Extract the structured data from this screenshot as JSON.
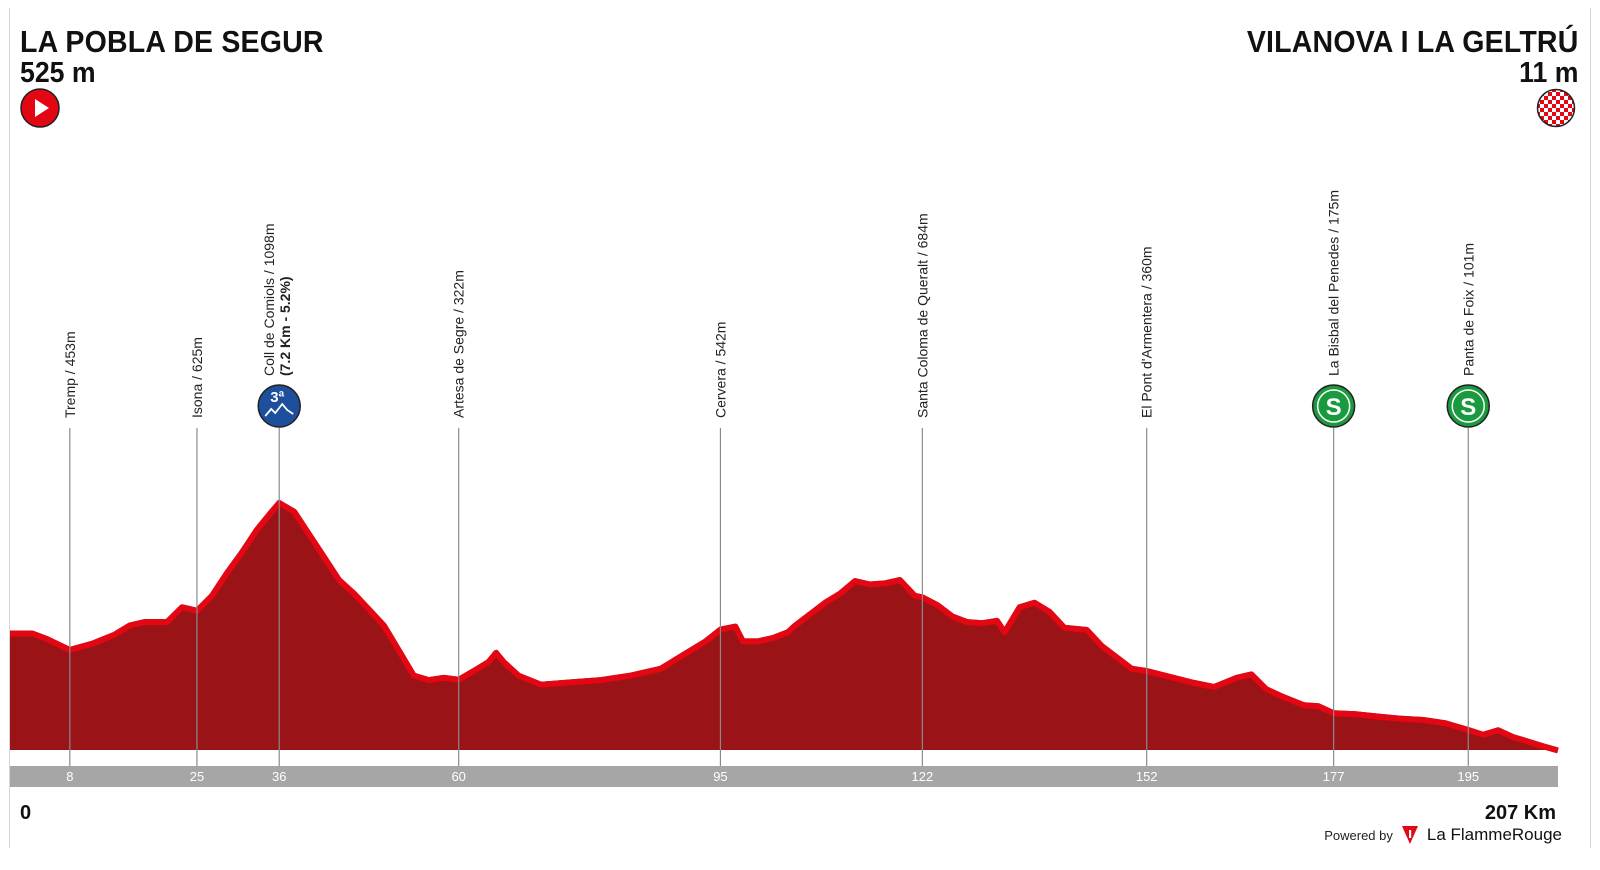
{
  "start": {
    "name": "LA POBLA DE SEGUR",
    "altitude": "525 m"
  },
  "finish": {
    "name": "VILANOVA I LA GELTRÚ",
    "altitude": "11 m"
  },
  "footer": {
    "km_start": "0",
    "km_end": "207 Km",
    "powered_by": "Powered by",
    "brand": "La FlammeRouge"
  },
  "colors": {
    "profile_fill": "#9a1316",
    "profile_edge": "#e30613",
    "axis_bar": "#a6a6a6",
    "start_icon": "#e30613",
    "kom_badge": "#1d4f9c",
    "sprint_badge": "#1a9a3e"
  },
  "icons": {
    "start": "play-icon",
    "finish": "checkered-flag-icon",
    "climb": "mountain-3rd-category-icon",
    "sprint": "sprint-s-icon"
  },
  "chart_data": {
    "type": "area",
    "title": "",
    "xlabel": "",
    "ylabel": "",
    "x_unit": "km",
    "y_unit": "m",
    "xlim": [
      0,
      207
    ],
    "ylim": [
      0,
      1098
    ],
    "elevation": [
      [
        0,
        525
      ],
      [
        3,
        525
      ],
      [
        5,
        500
      ],
      [
        8,
        453
      ],
      [
        11,
        480
      ],
      [
        14,
        520
      ],
      [
        16,
        560
      ],
      [
        18,
        575
      ],
      [
        21,
        575
      ],
      [
        23,
        640
      ],
      [
        25,
        625
      ],
      [
        27,
        690
      ],
      [
        29,
        790
      ],
      [
        31,
        880
      ],
      [
        33,
        980
      ],
      [
        35,
        1060
      ],
      [
        36,
        1098
      ],
      [
        38,
        1060
      ],
      [
        40,
        960
      ],
      [
        42,
        860
      ],
      [
        44,
        760
      ],
      [
        46,
        700
      ],
      [
        48,
        630
      ],
      [
        50,
        560
      ],
      [
        52,
        450
      ],
      [
        54,
        340
      ],
      [
        56,
        320
      ],
      [
        58,
        330
      ],
      [
        60,
        322
      ],
      [
        62,
        360
      ],
      [
        64,
        400
      ],
      [
        65,
        440
      ],
      [
        66,
        400
      ],
      [
        68,
        340
      ],
      [
        71,
        300
      ],
      [
        75,
        310
      ],
      [
        79,
        320
      ],
      [
        83,
        340
      ],
      [
        87,
        370
      ],
      [
        90,
        430
      ],
      [
        93,
        490
      ],
      [
        95,
        542
      ],
      [
        97,
        555
      ],
      [
        98,
        490
      ],
      [
        100,
        490
      ],
      [
        102,
        505
      ],
      [
        104,
        530
      ],
      [
        105,
        560
      ],
      [
        107,
        610
      ],
      [
        109,
        660
      ],
      [
        111,
        700
      ],
      [
        113,
        755
      ],
      [
        115,
        740
      ],
      [
        117,
        745
      ],
      [
        119,
        760
      ],
      [
        121,
        690
      ],
      [
        122,
        684
      ],
      [
        124,
        650
      ],
      [
        126,
        600
      ],
      [
        128,
        575
      ],
      [
        130,
        570
      ],
      [
        132,
        580
      ],
      [
        133,
        530
      ],
      [
        135,
        640
      ],
      [
        137,
        660
      ],
      [
        139,
        620
      ],
      [
        141,
        550
      ],
      [
        144,
        540
      ],
      [
        146,
        470
      ],
      [
        148,
        420
      ],
      [
        150,
        370
      ],
      [
        152,
        360
      ],
      [
        155,
        335
      ],
      [
        158,
        310
      ],
      [
        161,
        290
      ],
      [
        164,
        330
      ],
      [
        166,
        345
      ],
      [
        168,
        280
      ],
      [
        170,
        250
      ],
      [
        173,
        210
      ],
      [
        175,
        205
      ],
      [
        177,
        175
      ],
      [
        180,
        170
      ],
      [
        183,
        160
      ],
      [
        186,
        150
      ],
      [
        189,
        145
      ],
      [
        192,
        130
      ],
      [
        195,
        101
      ],
      [
        197,
        80
      ],
      [
        199,
        100
      ],
      [
        201,
        70
      ],
      [
        203,
        50
      ],
      [
        205,
        30
      ],
      [
        207,
        11
      ]
    ],
    "km_markers": [
      8,
      25,
      36,
      60,
      95,
      122,
      152,
      177,
      195
    ],
    "points": [
      {
        "km": 8,
        "label": "Tremp  / 453m",
        "type": "place"
      },
      {
        "km": 25,
        "label": "Isona / 625m",
        "type": "place"
      },
      {
        "km": 36,
        "label": "Coll de Comiols / 1098m",
        "detail": "(7.2 Km - 5.2%)",
        "type": "kom",
        "badge": "3ª"
      },
      {
        "km": 60,
        "label": "Artesa de Segre / 322m",
        "type": "place"
      },
      {
        "km": 95,
        "label": "Cervera / 542m",
        "type": "place"
      },
      {
        "km": 122,
        "label": "Santa Coloma de Queralt / 684m",
        "type": "place"
      },
      {
        "km": 152,
        "label": "El Pont d'Armentera / 360m",
        "type": "place"
      },
      {
        "km": 177,
        "label": "La Bisbal del Penedes / 175m",
        "type": "sprint",
        "badge": "S"
      },
      {
        "km": 195,
        "label": "Panta de Foix / 101m",
        "type": "sprint",
        "badge": "S"
      }
    ]
  }
}
